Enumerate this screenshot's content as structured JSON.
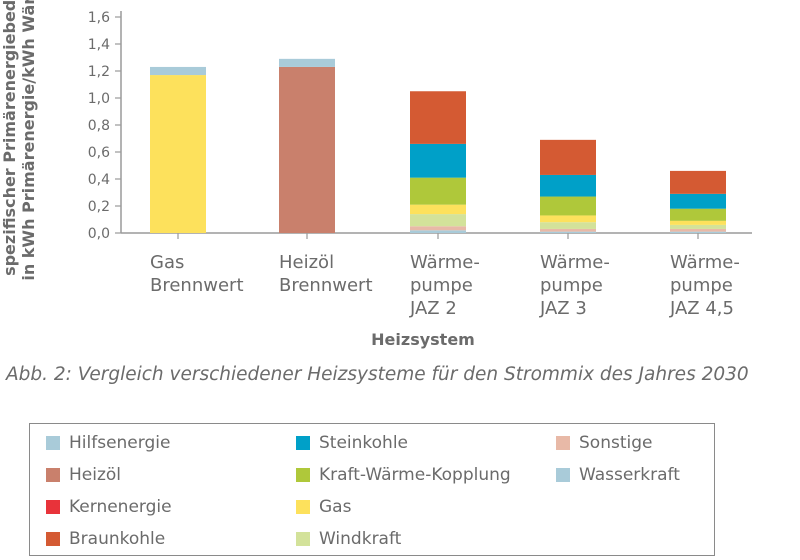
{
  "chart_data": {
    "type": "bar",
    "stacked": true,
    "categories": [
      [
        "Gas",
        "Brennwert"
      ],
      [
        "Heizöl",
        "Brennwert"
      ],
      [
        "Wärme-",
        "pumpe",
        "JAZ 2"
      ],
      [
        "Wärme-",
        "pumpe",
        "JAZ 3"
      ],
      [
        "Wärme-",
        "pumpe",
        "JAZ 4,5"
      ]
    ],
    "xlabel": "Heizsystem",
    "ylabel": [
      "spezifischer Primärenergiebedarf",
      "in kWh Primärenergie/kWh Wärme"
    ],
    "ylim": [
      0,
      1.6
    ],
    "yticks": [
      "0,0",
      "0,2",
      "0,4",
      "0,6",
      "0,8",
      "1,0",
      "1,2",
      "1,4",
      "1,6"
    ],
    "grid": false,
    "legend_position": "below",
    "series": [
      {
        "name": "Wasserkraft",
        "color": "#a9cbd9",
        "values": [
          0,
          0,
          0.02,
          0.01,
          0.01
        ]
      },
      {
        "name": "Sonstige",
        "color": "#e8b9a7",
        "values": [
          0,
          0,
          0.03,
          0.02,
          0.02
        ]
      },
      {
        "name": "Windkraft",
        "color": "#d3e29a",
        "values": [
          0,
          0,
          0.09,
          0.05,
          0.03
        ]
      },
      {
        "name": "Gas",
        "color": "#fde15c",
        "values": [
          1.17,
          0,
          0.07,
          0.05,
          0.03
        ]
      },
      {
        "name": "Kraft-Wärme-Kopplung",
        "color": "#afc83a",
        "values": [
          0,
          0,
          0.2,
          0.14,
          0.09
        ]
      },
      {
        "name": "Kernenergie",
        "color": "#e8333a",
        "values": [
          0,
          0,
          0,
          0,
          0
        ]
      },
      {
        "name": "Steinkohle",
        "color": "#00a0c8",
        "values": [
          0,
          0,
          0.25,
          0.16,
          0.11
        ]
      },
      {
        "name": "Braunkohle",
        "color": "#d45a33",
        "values": [
          0,
          0,
          0.39,
          0.26,
          0.17
        ]
      },
      {
        "name": "Heizöl",
        "color": "#c9806c",
        "values": [
          0,
          1.23,
          0,
          0,
          0
        ]
      },
      {
        "name": "Hilfsenergie",
        "color": "#a9cbd9",
        "values": [
          0.06,
          0.06,
          0,
          0,
          0
        ]
      }
    ]
  },
  "caption": "Abb. 2: Vergleich verschiedener Heizsysteme für den Strommix des Jahres 2030",
  "legend": [
    [
      {
        "label": "Hilfsenergie",
        "color": "#a9cbd9"
      },
      {
        "label": "Heizöl",
        "color": "#c9806c"
      },
      {
        "label": "Kernenergie",
        "color": "#e8333a"
      },
      {
        "label": "Braunkohle",
        "color": "#d45a33"
      }
    ],
    [
      {
        "label": "Steinkohle",
        "color": "#00a0c8"
      },
      {
        "label": "Kraft-Wärme-Kopplung",
        "color": "#afc83a"
      },
      {
        "label": "Gas",
        "color": "#fde15c"
      },
      {
        "label": "Windkraft",
        "color": "#d3e29a"
      }
    ],
    [
      {
        "label": "Sonstige",
        "color": "#e8b9a7"
      },
      {
        "label": "Wasserkraft",
        "color": "#a9cbd9"
      }
    ]
  ]
}
